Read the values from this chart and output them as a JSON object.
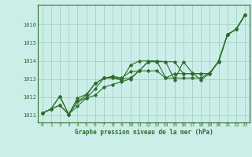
{
  "background_color": "#cceee8",
  "grid_color": "#aad4cc",
  "line_color": "#2d6e2d",
  "marker_color": "#2d6e2d",
  "xlabel": "Graphe pression niveau de la mer (hPa)",
  "xlim": [
    -0.5,
    23.5
  ],
  "ylim": [
    1010.6,
    1017.1
  ],
  "yticks": [
    1011,
    1012,
    1013,
    1014,
    1015,
    1016
  ],
  "xticks": [
    0,
    1,
    2,
    3,
    4,
    5,
    6,
    7,
    8,
    9,
    10,
    11,
    12,
    13,
    14,
    15,
    16,
    17,
    18,
    19,
    20,
    21,
    22,
    23
  ],
  "series": [
    [
      1011.1,
      1011.35,
      1011.55,
      1011.05,
      1011.5,
      1011.95,
      1012.1,
      1012.55,
      1012.7,
      1012.85,
      1013.0,
      1013.45,
      1013.95,
      1014.0,
      1013.95,
      1012.95,
      1013.95,
      1013.35,
      1012.95,
      1013.3,
      1013.95,
      1015.45,
      1015.75,
      1016.55
    ],
    [
      1011.1,
      1011.35,
      1011.55,
      1011.05,
      1011.75,
      1011.95,
      1012.45,
      1013.05,
      1013.05,
      1012.95,
      1013.75,
      1014.0,
      1014.0,
      1014.0,
      1013.05,
      1013.05,
      1013.05,
      1013.05,
      1013.05,
      1013.35,
      1013.95,
      1015.45,
      1015.75,
      1016.55
    ],
    [
      1011.1,
      1011.35,
      1012.05,
      1011.05,
      1011.75,
      1012.1,
      1012.75,
      1013.05,
      1013.1,
      1013.0,
      1013.05,
      1013.45,
      1013.45,
      1013.45,
      1013.05,
      1013.3,
      1013.3,
      1013.3,
      1013.3,
      1013.3,
      1014.0,
      1015.45,
      1015.75,
      1016.55
    ],
    [
      1011.1,
      1011.35,
      1012.05,
      1011.05,
      1011.95,
      1012.15,
      1012.75,
      1013.05,
      1013.15,
      1013.05,
      1013.4,
      1013.45,
      1013.95,
      1013.95,
      1013.95,
      1013.95,
      1013.3,
      1013.3,
      1013.3,
      1013.3,
      1014.0,
      1015.45,
      1015.75,
      1016.55
    ]
  ]
}
